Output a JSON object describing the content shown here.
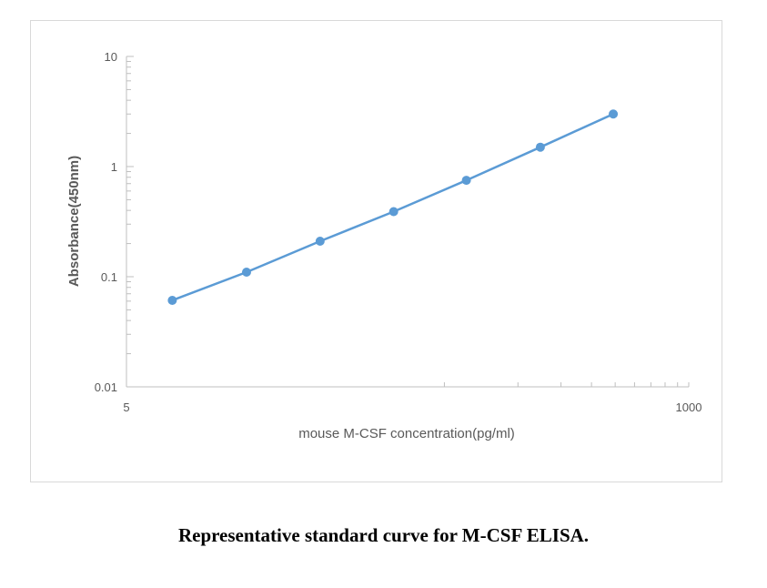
{
  "caption": "Representative standard curve for M-CSF ELISA.",
  "chart_data": {
    "type": "line",
    "title": "",
    "xlabel": "mouse M-CSF concentration(pg/ml)",
    "ylabel": "Absorbance(450nm)",
    "x_scale": "log",
    "y_scale": "log",
    "xlim": [
      5,
      1000
    ],
    "ylim": [
      0.01,
      10
    ],
    "x_tick_labels": [
      "5",
      "1000"
    ],
    "y_tick_labels": [
      "10",
      "1",
      "0.1",
      "0.01"
    ],
    "grid": false,
    "legend": null,
    "values_are_estimates": true,
    "estimate_note": "No data labels on chart; values read from pixel positions against log axes (about ±5%). X values appear consistent with 2-fold serial dilution.",
    "series": [
      {
        "name": "Standard curve",
        "color": "#5b9bd5",
        "x": [
          7.7,
          15.5,
          31,
          62,
          123,
          247,
          491
        ],
        "y": [
          0.061,
          0.11,
          0.21,
          0.39,
          0.75,
          1.5,
          3.0
        ]
      }
    ]
  }
}
